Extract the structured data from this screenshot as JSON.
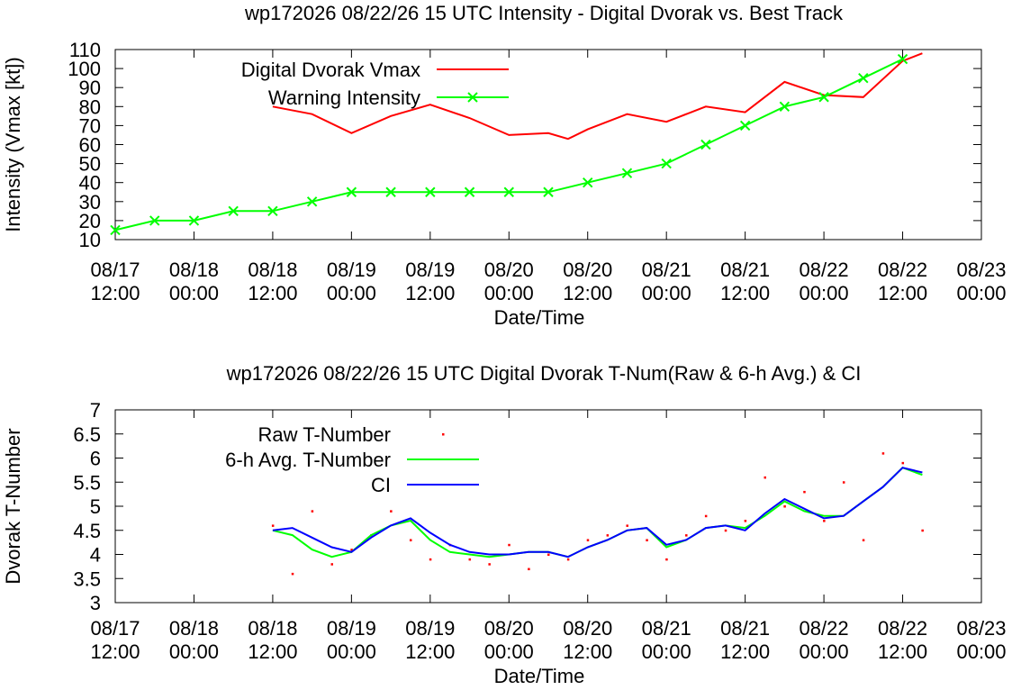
{
  "chart_data": [
    {
      "type": "line",
      "title": "wp172026 08/22/26  15 UTC Intensity - Digital Dvorak vs. Best Track",
      "xlabel": "Date/Time",
      "ylabel": "Intensity (Vmax [kt])",
      "ylim": [
        10,
        110
      ],
      "yticks": [
        "10",
        "20",
        "30",
        "40",
        "50",
        "60",
        "70",
        "80",
        "90",
        "100",
        "110"
      ],
      "xlim": [
        "08/17 12:00",
        "08/23 00:00"
      ],
      "xticks": [
        {
          "date": "08/17",
          "time": "12:00"
        },
        {
          "date": "08/18",
          "time": "00:00"
        },
        {
          "date": "08/18",
          "time": "12:00"
        },
        {
          "date": "08/19",
          "time": "00:00"
        },
        {
          "date": "08/19",
          "time": "12:00"
        },
        {
          "date": "08/20",
          "time": "00:00"
        },
        {
          "date": "08/20",
          "time": "12:00"
        },
        {
          "date": "08/21",
          "time": "00:00"
        },
        {
          "date": "08/21",
          "time": "12:00"
        },
        {
          "date": "08/22",
          "time": "00:00"
        },
        {
          "date": "08/22",
          "time": "12:00"
        },
        {
          "date": "08/23",
          "time": "00:00"
        }
      ],
      "legend_position": "top-left",
      "grid": false,
      "series": [
        {
          "name": "Digital Dvorak Vmax",
          "color": "#ff0000",
          "marker": "none",
          "x": [
            "08/18 12:00",
            "08/18 18:00",
            "08/19 00:00",
            "08/19 06:00",
            "08/19 12:00",
            "08/19 18:00",
            "08/20 00:00",
            "08/20 06:00",
            "08/20 09:00",
            "08/20 12:00",
            "08/20 18:00",
            "08/21 00:00",
            "08/21 06:00",
            "08/21 12:00",
            "08/21 18:00",
            "08/22 00:00",
            "08/22 06:00",
            "08/22 12:00",
            "08/22 15:00"
          ],
          "values": [
            80,
            76,
            66,
            75,
            81,
            74,
            65,
            66,
            63,
            68,
            76,
            72,
            80,
            77,
            93,
            86,
            85,
            104,
            108
          ]
        },
        {
          "name": "Warning Intensity",
          "color": "#00ff00",
          "marker": "x",
          "x": [
            "08/17 12:00",
            "08/17 18:00",
            "08/18 00:00",
            "08/18 06:00",
            "08/18 12:00",
            "08/18 18:00",
            "08/19 00:00",
            "08/19 06:00",
            "08/19 12:00",
            "08/19 18:00",
            "08/20 00:00",
            "08/20 06:00",
            "08/20 12:00",
            "08/20 18:00",
            "08/21 00:00",
            "08/21 06:00",
            "08/21 12:00",
            "08/21 18:00",
            "08/22 00:00",
            "08/22 06:00",
            "08/22 12:00"
          ],
          "values": [
            15,
            20,
            20,
            25,
            25,
            30,
            35,
            35,
            35,
            35,
            35,
            35,
            40,
            45,
            50,
            60,
            70,
            80,
            85,
            95,
            105
          ]
        }
      ]
    },
    {
      "type": "line",
      "title": "wp172026 08/22/26  15 UTC Digital Dvorak T-Num(Raw & 6-h Avg.) & CI",
      "xlabel": "Date/Time",
      "ylabel": "Dvorak T-Number",
      "ylim": [
        3,
        7
      ],
      "yticks": [
        "3",
        "3.5",
        "4",
        "4.5",
        "5",
        "5.5",
        "6",
        "6.5",
        "7"
      ],
      "xlim": [
        "08/17 12:00",
        "08/23 00:00"
      ],
      "xticks": [
        {
          "date": "08/17",
          "time": "12:00"
        },
        {
          "date": "08/18",
          "time": "00:00"
        },
        {
          "date": "08/18",
          "time": "12:00"
        },
        {
          "date": "08/19",
          "time": "00:00"
        },
        {
          "date": "08/19",
          "time": "12:00"
        },
        {
          "date": "08/20",
          "time": "00:00"
        },
        {
          "date": "08/20",
          "time": "12:00"
        },
        {
          "date": "08/21",
          "time": "00:00"
        },
        {
          "date": "08/21",
          "time": "12:00"
        },
        {
          "date": "08/22",
          "time": "00:00"
        },
        {
          "date": "08/22",
          "time": "12:00"
        },
        {
          "date": "08/23",
          "time": "00:00"
        }
      ],
      "legend_position": "top-left",
      "grid": false,
      "series": [
        {
          "name": "Raw T-Number",
          "color": "#ff0000",
          "marker": "dot",
          "x": [
            "08/18 12:00",
            "08/18 15:00",
            "08/18 18:00",
            "08/18 21:00",
            "08/19 00:00",
            "08/19 03:00",
            "08/19 06:00",
            "08/19 09:00",
            "08/19 12:00",
            "08/19 15:00",
            "08/19 18:00",
            "08/19 21:00",
            "08/20 00:00",
            "08/20 03:00",
            "08/20 06:00",
            "08/20 09:00",
            "08/20 12:00",
            "08/20 15:00",
            "08/20 18:00",
            "08/20 21:00",
            "08/21 00:00",
            "08/21 03:00",
            "08/21 06:00",
            "08/21 09:00",
            "08/21 12:00",
            "08/21 15:00",
            "08/21 18:00",
            "08/21 21:00",
            "08/22 00:00",
            "08/22 03:00",
            "08/22 06:00",
            "08/22 09:00",
            "08/22 12:00",
            "08/22 15:00"
          ],
          "values": [
            4.6,
            3.6,
            4.9,
            3.8,
            4.1,
            4.4,
            4.9,
            4.3,
            3.9,
            4.2,
            3.9,
            3.8,
            4.2,
            3.7,
            4.0,
            3.9,
            4.3,
            4.4,
            4.6,
            4.3,
            3.9,
            4.4,
            4.8,
            4.5,
            4.7,
            5.6,
            5.0,
            5.3,
            4.7,
            5.5,
            4.3,
            6.1,
            5.9,
            4.5
          ]
        },
        {
          "name": "6-h Avg. T-Number",
          "color": "#00ff00",
          "marker": "none",
          "x": [
            "08/18 12:00",
            "08/18 15:00",
            "08/18 18:00",
            "08/18 21:00",
            "08/19 00:00",
            "08/19 03:00",
            "08/19 06:00",
            "08/19 09:00",
            "08/19 12:00",
            "08/19 15:00",
            "08/19 18:00",
            "08/19 21:00",
            "08/20 00:00",
            "08/20 03:00",
            "08/20 06:00",
            "08/20 09:00",
            "08/20 12:00",
            "08/20 15:00",
            "08/20 18:00",
            "08/20 21:00",
            "08/21 00:00",
            "08/21 03:00",
            "08/21 06:00",
            "08/21 09:00",
            "08/21 12:00",
            "08/21 15:00",
            "08/21 18:00",
            "08/21 21:00",
            "08/22 00:00",
            "08/22 03:00",
            "08/22 06:00",
            "08/22 09:00",
            "08/22 12:00",
            "08/22 15:00"
          ],
          "values": [
            4.5,
            4.4,
            4.1,
            3.95,
            4.05,
            4.4,
            4.6,
            4.7,
            4.3,
            4.05,
            4.0,
            3.95,
            4.0,
            4.05,
            4.05,
            3.95,
            4.15,
            4.3,
            4.5,
            4.55,
            4.15,
            4.3,
            4.55,
            4.6,
            4.55,
            4.8,
            5.1,
            4.9,
            4.8,
            4.8,
            5.1,
            5.4,
            5.8,
            5.65
          ]
        },
        {
          "name": "CI",
          "color": "#0000ff",
          "marker": "none",
          "x": [
            "08/18 12:00",
            "08/18 15:00",
            "08/18 18:00",
            "08/18 21:00",
            "08/19 00:00",
            "08/19 03:00",
            "08/19 06:00",
            "08/19 09:00",
            "08/19 12:00",
            "08/19 15:00",
            "08/19 18:00",
            "08/19 21:00",
            "08/20 00:00",
            "08/20 03:00",
            "08/20 06:00",
            "08/20 09:00",
            "08/20 12:00",
            "08/20 15:00",
            "08/20 18:00",
            "08/20 21:00",
            "08/21 00:00",
            "08/21 03:00",
            "08/21 06:00",
            "08/21 09:00",
            "08/21 12:00",
            "08/21 15:00",
            "08/21 18:00",
            "08/21 21:00",
            "08/22 00:00",
            "08/22 03:00",
            "08/22 06:00",
            "08/22 09:00",
            "08/22 12:00",
            "08/22 15:00"
          ],
          "values": [
            4.5,
            4.55,
            4.35,
            4.15,
            4.05,
            4.35,
            4.6,
            4.75,
            4.45,
            4.2,
            4.05,
            4.0,
            4.0,
            4.05,
            4.05,
            3.95,
            4.15,
            4.3,
            4.5,
            4.55,
            4.2,
            4.3,
            4.55,
            4.6,
            4.5,
            4.85,
            5.15,
            4.95,
            4.75,
            4.8,
            5.1,
            5.4,
            5.8,
            5.7
          ]
        }
      ]
    }
  ]
}
